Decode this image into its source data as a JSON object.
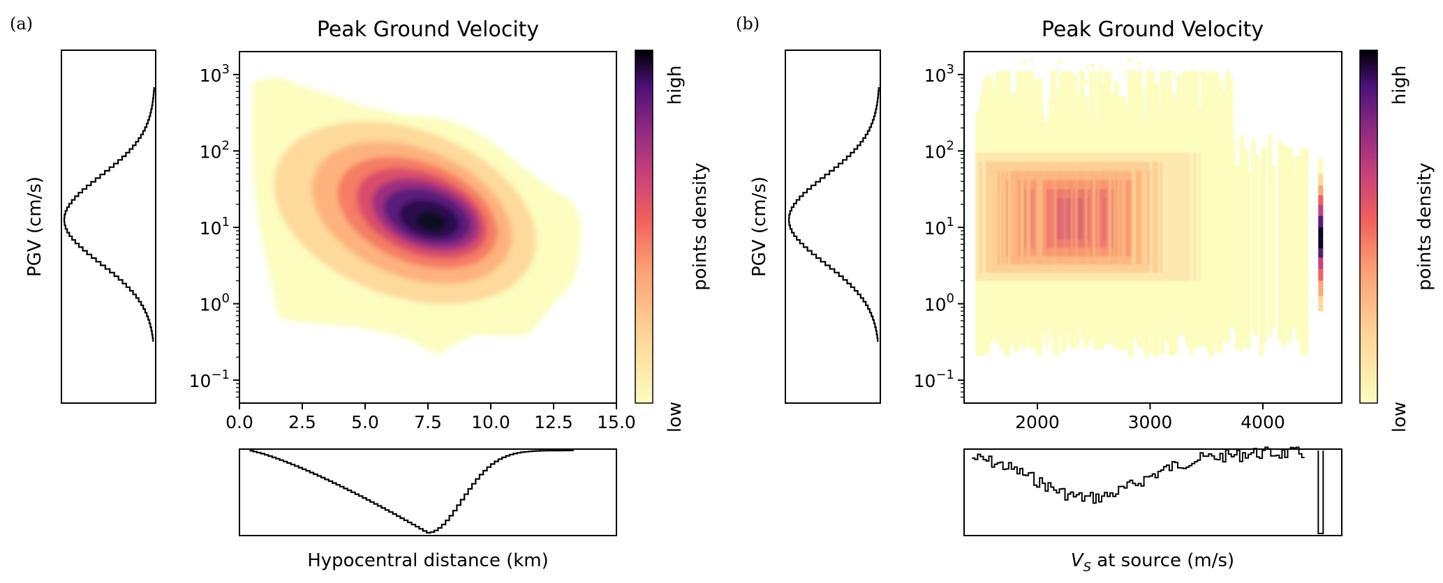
{
  "chart_data": [
    {
      "type": "hexbin",
      "panel_label": "(a)",
      "title": "Peak Ground Velocity",
      "xlabel": "Hypocentral distance (km)",
      "ylabel": "PGV (cm/s)",
      "xlim": [
        0,
        15
      ],
      "ylim_log10": [
        -1.3,
        3.3
      ],
      "xticks": [
        {
          "v": 0,
          "label": "0.0"
        },
        {
          "v": 2.5,
          "label": "2.5"
        },
        {
          "v": 5,
          "label": "5.0"
        },
        {
          "v": 7.5,
          "label": "7.5"
        },
        {
          "v": 10,
          "label": "10.0"
        },
        {
          "v": 12.5,
          "label": "12.5"
        },
        {
          "v": 15,
          "label": "15.0"
        }
      ],
      "yticks": [
        {
          "v": 3,
          "base": "10",
          "exp": "3"
        },
        {
          "v": 2,
          "base": "10",
          "exp": "2"
        },
        {
          "v": 1,
          "base": "10",
          "exp": "1"
        },
        {
          "v": 0,
          "base": "10",
          "exp": "0"
        },
        {
          "v": -1,
          "base": "10",
          "exp": "−1"
        }
      ],
      "colorbar": {
        "label": "points density",
        "low": "low",
        "high": "high",
        "cmap": "magma_r"
      },
      "density_core": {
        "x_center": 7.2,
        "log10_pgv_center": 1.1
      },
      "marginal_y_hist": {
        "peak_log10_pgv": 1.1
      },
      "marginal_x_hist": {
        "peak_distance_km": 7.5
      }
    },
    {
      "type": "hexbin",
      "panel_label": "(b)",
      "title": "Peak Ground Velocity",
      "xlabel_prefix": "V",
      "xlabel_sub": "S",
      "xlabel_suffix": " at source (m/s)",
      "ylabel": "PGV (cm/s)",
      "xlim": [
        1350,
        4700
      ],
      "ylim_log10": [
        -1.3,
        3.3
      ],
      "xticks": [
        {
          "v": 2000,
          "label": "2000"
        },
        {
          "v": 3000,
          "label": "3000"
        },
        {
          "v": 4000,
          "label": "4000"
        }
      ],
      "yticks": [
        {
          "v": 3,
          "base": "10",
          "exp": "3"
        },
        {
          "v": 2,
          "base": "10",
          "exp": "2"
        },
        {
          "v": 1,
          "base": "10",
          "exp": "1"
        },
        {
          "v": 0,
          "base": "10",
          "exp": "0"
        },
        {
          "v": -1,
          "base": "10",
          "exp": "−1"
        }
      ],
      "colorbar": {
        "label": "points density",
        "low": "low",
        "high": "high",
        "cmap": "magma_r"
      },
      "density_core": {
        "x_center": 2400,
        "log10_pgv_center": 1.1
      },
      "marginal_y_hist": {
        "peak_log10_pgv": 1.1
      },
      "marginal_x_hist": {
        "spike_at_vs": 4510
      }
    }
  ]
}
